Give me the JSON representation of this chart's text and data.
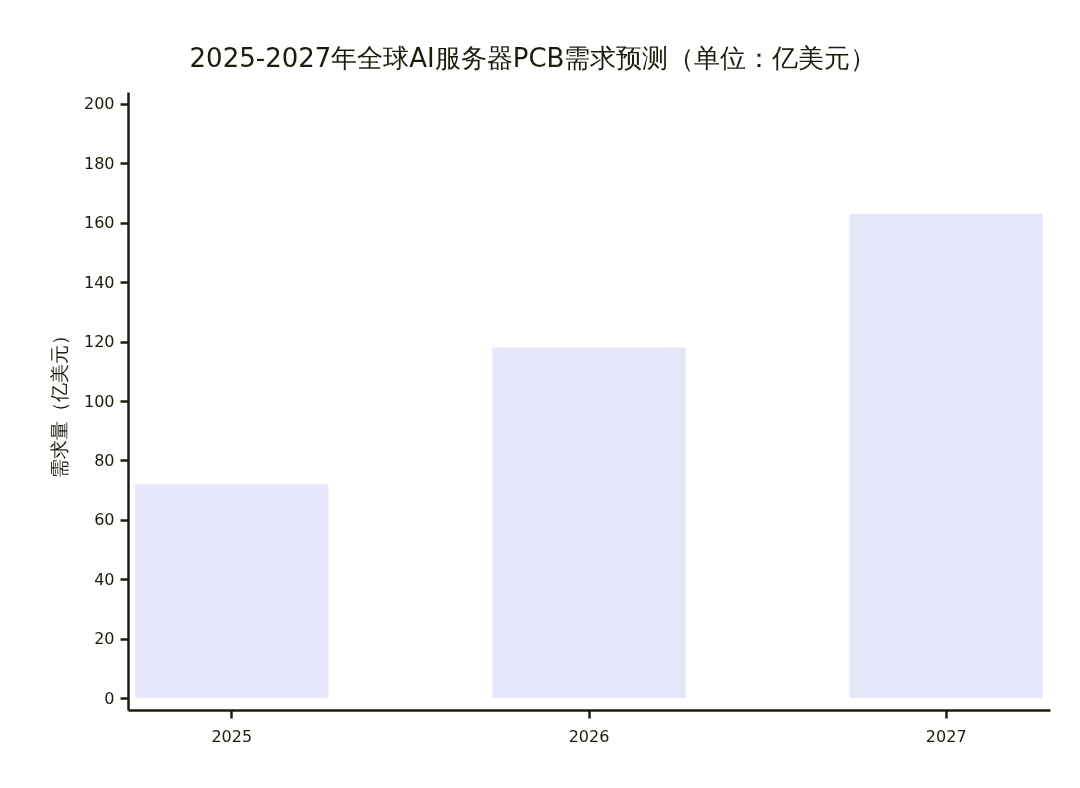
{
  "chart_data": {
    "type": "bar",
    "title": "2025-2027年全球AI服务器PCB需求预测（单位：亿美元）",
    "ylabel": "需求量（亿美元）",
    "categories": [
      "2025",
      "2026",
      "2027"
    ],
    "values": [
      72,
      118,
      163
    ],
    "color": "#e6e6fa",
    "ylim": [
      -4,
      204
    ],
    "yticks": [
      0,
      20,
      40,
      60,
      80,
      100,
      120,
      140,
      160,
      180,
      200
    ],
    "grid": false
  }
}
